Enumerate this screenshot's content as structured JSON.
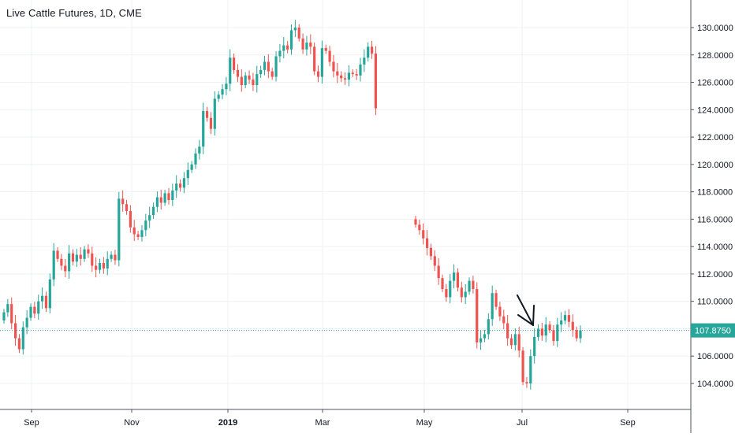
{
  "header": {
    "title": "Live Cattle Futures, 1D, CME"
  },
  "colors": {
    "up": "#26a69a",
    "down": "#ef5350",
    "grid": "#eef0f3",
    "axis": "#50535e",
    "price_line": "#26a69a",
    "price_label_bg": "#26a69a"
  },
  "chart_data": {
    "type": "candlestick",
    "title": "Live Cattle Futures, 1D, CME",
    "xlabel": "",
    "ylabel": "",
    "ylim": [
      102.5,
      131.5
    ],
    "y_ticks": [
      "130.0000",
      "128.0000",
      "126.0000",
      "124.0000",
      "122.0000",
      "120.0000",
      "118.0000",
      "116.0000",
      "114.0000",
      "112.0000",
      "110.0000",
      "106.0000",
      "104.0000"
    ],
    "x_ticks": [
      "Sep",
      "Nov",
      "2019",
      "Mar",
      "May",
      "Jul",
      "Sep"
    ],
    "last_price": 107.875,
    "last_price_label": "107.8750",
    "grid": true,
    "series": [
      {
        "name": "",
        "segments": [
          {
            "close": [
              109.2,
              109.8,
              108.4,
              107.3,
              106.5,
              108.1,
              108.8,
              109.6,
              109.1,
              110.0,
              110.4,
              109.5,
              111.6,
              113.7,
              113.1,
              112.6,
              112.2,
              113.5,
              112.9,
              113.4,
              113.1,
              113.8,
              113.5,
              112.6,
              112.3,
              112.8,
              112.4,
              113.1,
              113.4,
              113.0,
              117.5,
              117.1,
              116.6,
              115.4,
              114.9,
              114.7,
              115.2,
              115.9,
              116.3,
              116.9,
              117.6,
              117.2,
              117.9,
              117.4,
              118.1,
              118.6,
              118.3,
              119.0,
              119.6,
              120.0,
              120.8,
              121.3,
              123.9,
              123.4,
              122.6,
              124.8,
              125.1,
              125.5,
              125.9,
              127.8,
              126.9,
              126.4,
              125.8,
              126.5,
              126.2,
              125.8,
              126.6,
              126.9,
              127.5,
              126.8,
              126.4,
              127.9,
              128.3,
              128.7,
              128.4,
              129.8,
              130.0,
              129.2,
              128.4,
              128.9,
              128.6,
              126.8,
              126.4,
              128.5,
              128.3,
              127.5,
              126.8,
              126.5,
              126.3,
              126.2,
              126.7,
              126.6,
              126.5,
              127.3,
              127.8,
              128.6,
              128.1,
              124.1
            ]
          },
          {
            "close": [
              115.6,
              115.2,
              114.6,
              113.9,
              113.3,
              112.6,
              111.7,
              110.9,
              110.3,
              111.5,
              112.1,
              111.0,
              110.3,
              110.7,
              111.5,
              110.9,
              107.0,
              107.3,
              107.6,
              108.7,
              110.6,
              109.6,
              108.9,
              108.4,
              107.3,
              106.8,
              107.6,
              106.4,
              104.1,
              104.0,
              106.0,
              107.4,
              108.0,
              107.5,
              108.3,
              107.9,
              107.1,
              108.3,
              108.6,
              109.0,
              108.5,
              107.9,
              107.3,
              107.875
            ]
          }
        ]
      }
    ]
  }
}
